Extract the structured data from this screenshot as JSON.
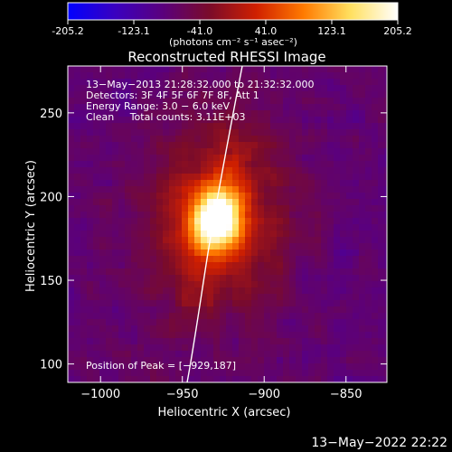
{
  "colorbar": {
    "tick_labels": [
      "-205.2",
      "-123.1",
      "-41.0",
      "41.0",
      "123.1",
      "205.2"
    ],
    "tick_values": [
      -205.2,
      -123.1,
      -41.0,
      41.0,
      123.1,
      205.2
    ],
    "units_label": "(photons cm⁻² s⁻¹ asec⁻²)",
    "stops": [
      "#0000ff",
      "#3a00c0",
      "#5a007e",
      "#7a0b2a",
      "#d02000",
      "#ff7a00",
      "#ffe060",
      "#ffffff"
    ]
  },
  "plot": {
    "title": "Reconstructed RHESSI Image",
    "x_label": "Heliocentric X (arcsec)",
    "y_label": "Heliocentric Y (arcsec)",
    "x_range": [
      -1020,
      -825
    ],
    "y_range": [
      89,
      278
    ],
    "x_ticks": [
      {
        "value": -1000,
        "label": "−1000"
      },
      {
        "value": -950,
        "label": "−950"
      },
      {
        "value": -900,
        "label": "−900"
      },
      {
        "value": -850,
        "label": "−850"
      }
    ],
    "y_ticks": [
      {
        "value": 100,
        "label": "100"
      },
      {
        "value": 150,
        "label": "150"
      },
      {
        "value": 200,
        "label": "200"
      },
      {
        "value": 250,
        "label": "250"
      }
    ],
    "info_lines": [
      "13−May−2013 21:28:32.000 to 21:32:32.000",
      "Detectors: 3F 4F 5F 6F 7F 8F, Att 1",
      "Energy Range: 3.0 − 6.0 keV",
      "Clean     Total counts: 3.11E+03"
    ],
    "peak_label": "Position of Peak = [−929,187]",
    "peak": {
      "x": -929,
      "y": 187
    }
  },
  "footer": {
    "timestamp": "13−May−2022 22:22"
  }
}
